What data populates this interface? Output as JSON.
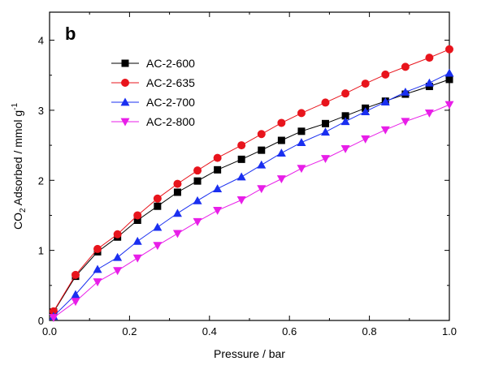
{
  "chart_data": {
    "type": "line",
    "panel_label": "b",
    "xlabel": "Pressure / bar",
    "ylabel": {
      "prefix": "CO",
      "subscript": "2",
      "middle": " Adsorbed / mmol g",
      "superscript": "-1"
    },
    "xlim": [
      0,
      1.0
    ],
    "ylim": [
      0,
      4.4
    ],
    "x_ticks": [
      "0.0",
      "0.2",
      "0.4",
      "0.6",
      "0.8",
      "1.0"
    ],
    "y_ticks": [
      "0",
      "1",
      "2",
      "3",
      "4"
    ],
    "grid": false,
    "legend_position": "top-left",
    "x": [
      0.01,
      0.065,
      0.12,
      0.17,
      0.22,
      0.27,
      0.32,
      0.37,
      0.42,
      0.48,
      0.53,
      0.58,
      0.63,
      0.69,
      0.74,
      0.79,
      0.84,
      0.89,
      0.95,
      1.0
    ],
    "series": [
      {
        "name": "AC-2-600",
        "color": "#000000",
        "marker": "square",
        "values": [
          0.12,
          0.63,
          0.98,
          1.19,
          1.43,
          1.63,
          1.83,
          1.99,
          2.15,
          2.3,
          2.43,
          2.57,
          2.7,
          2.81,
          2.92,
          3.03,
          3.13,
          3.23,
          3.34,
          3.44
        ]
      },
      {
        "name": "AC-2-635",
        "color": "#e8141c",
        "marker": "circle",
        "values": [
          0.13,
          0.65,
          1.02,
          1.23,
          1.5,
          1.74,
          1.95,
          2.14,
          2.32,
          2.5,
          2.66,
          2.82,
          2.96,
          3.11,
          3.24,
          3.38,
          3.51,
          3.62,
          3.75,
          3.87
        ]
      },
      {
        "name": "AC-2-700",
        "color": "#1a2ff0",
        "marker": "triangle-up",
        "values": [
          0.06,
          0.37,
          0.73,
          0.9,
          1.13,
          1.33,
          1.53,
          1.71,
          1.88,
          2.05,
          2.22,
          2.39,
          2.54,
          2.69,
          2.84,
          2.98,
          3.12,
          3.26,
          3.39,
          3.53
        ]
      },
      {
        "name": "AC-2-800",
        "color": "#e81ee8",
        "marker": "triangle-down",
        "values": [
          0.04,
          0.27,
          0.55,
          0.71,
          0.89,
          1.07,
          1.24,
          1.41,
          1.57,
          1.72,
          1.88,
          2.02,
          2.17,
          2.31,
          2.45,
          2.59,
          2.72,
          2.84,
          2.96,
          3.08
        ]
      }
    ]
  }
}
